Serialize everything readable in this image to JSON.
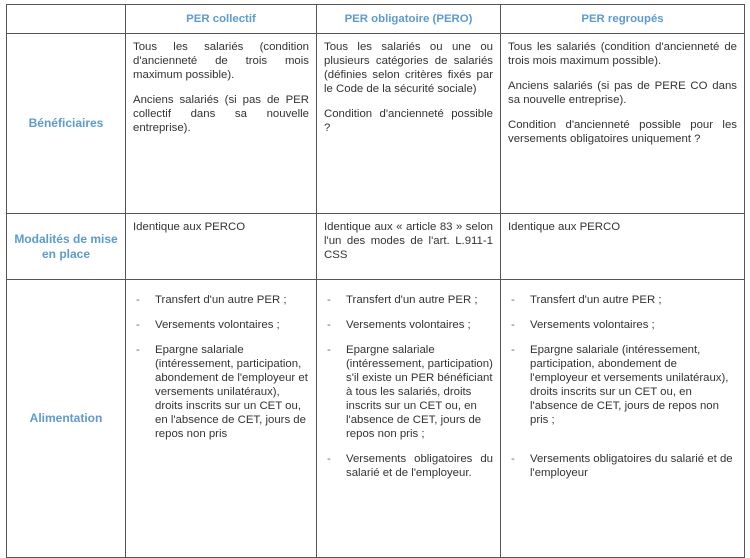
{
  "headers": [
    "",
    "PER collectif",
    "PER obligatoire (PERO)",
    "PER regroupés"
  ],
  "rows": [
    {
      "label": "Bénéficiaires",
      "cells": [
        [
          "Tous les salariés (condition d'ancienneté de trois mois maximum possible).",
          "Anciens salariés (si pas de PER collectif dans sa nouvelle entreprise)."
        ],
        [
          "Tous les salariés ou une ou plusieurs catégories de salariés (définies selon critères fixés par le Code de la sécurité sociale)",
          "Condition d'ancienneté possible ?"
        ],
        [
          "Tous les salariés (condition d'ancienneté de trois mois maximum possible).",
          "Anciens salariés (si pas de PERE CO dans sa nouvelle entreprise).",
          "Condition d'ancienneté possible pour les versements obligatoires uniquement ?"
        ]
      ]
    },
    {
      "label": "Modalités de mise en place",
      "cells": [
        [
          "Identique aux PERCO"
        ],
        [
          "Identique aux « article 83 » selon l'un des modes de l'art. L.911-1 CSS"
        ],
        [
          "Identique aux PERCO"
        ]
      ]
    },
    {
      "label": "Alimentation",
      "cells": [
        [
          "Transfert d'un autre PER ;",
          "Versements volontaires ;",
          "Epargne salariale (intéressement, participation, abondement de l'employeur et versements unilatéraux), droits inscrits sur un CET ou, en l'absence de CET, jours de repos non pris"
        ],
        [
          "Transfert d'un autre PER ;",
          "Versements volontaires ;",
          "Epargne salariale (intéressement, participation) s'il existe un PER bénéficiant à tous les salariés, droits inscrits sur un CET ou, en l'absence de CET, jours de repos non pris ;",
          "Versements obligatoires du salarié et de l'employeur."
        ],
        [
          "Transfert d'un autre PER ;",
          "Versements volontaires ;",
          "Epargne salariale (intéressement, participation, abondement de l'employeur et versements unilatéraux), droits inscrits sur un CET ou, en l'absence de CET, jours de repos non pris ;",
          "Versements obligatoires du salarié et de l'employeur"
        ]
      ]
    }
  ],
  "bullet": "-",
  "colors": {
    "header_text": "#5b9bd5",
    "border": "#555555",
    "body_text": "#333333"
  }
}
